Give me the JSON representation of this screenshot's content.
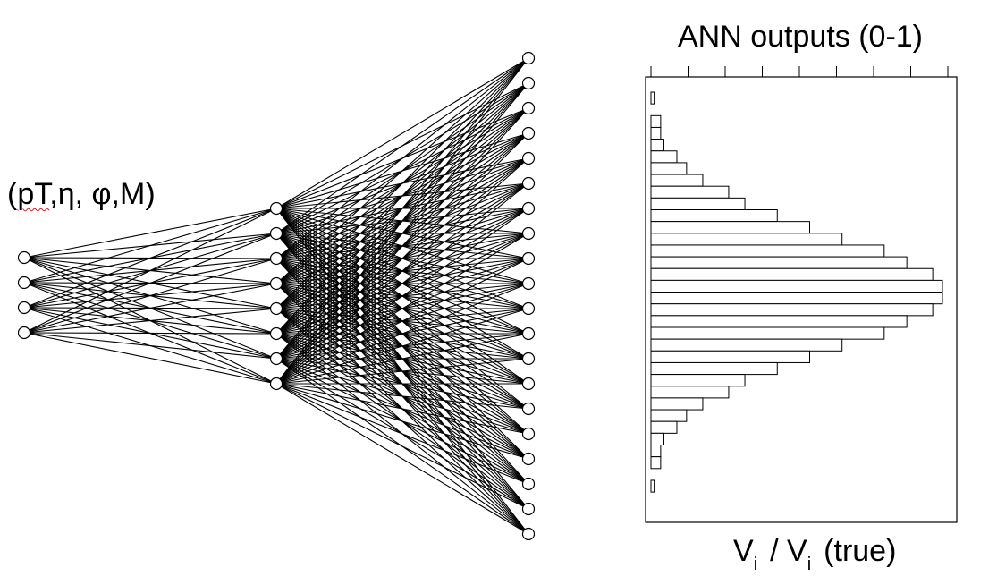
{
  "network": {
    "input_label_prefix": "(",
    "input_label_underlined": "pT",
    "input_label_rest": ",η, φ,M)",
    "layers": [
      4,
      8,
      20
    ],
    "line_color": "#000000",
    "node_fill": "#ffffff"
  },
  "histogram": {
    "title": "ANN outputs (0-1)",
    "xlabel_var": "V",
    "xlabel_sub": "i",
    "xlabel_sep": "/ V",
    "xlabel_sub2": "i",
    "xlabel_suffix": "(true)",
    "top_tick_count": 9,
    "bin_values": [
      1,
      0,
      3,
      3,
      4,
      8,
      11,
      16,
      24,
      29,
      39,
      49,
      59,
      72,
      79,
      87,
      90,
      90,
      87,
      79,
      72,
      59,
      49,
      39,
      29,
      24,
      16,
      11,
      8,
      4,
      3,
      3,
      0,
      1,
      0
    ]
  }
}
